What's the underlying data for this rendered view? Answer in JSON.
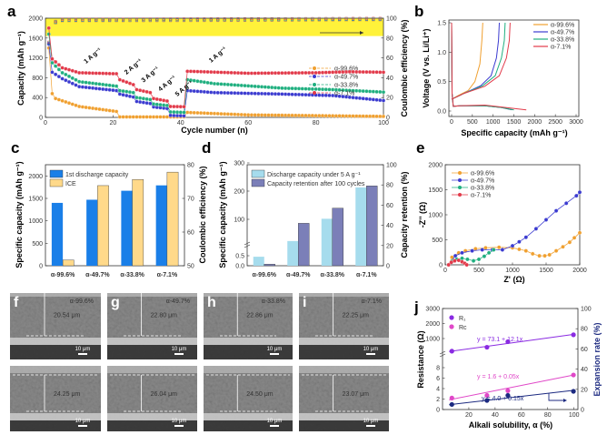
{
  "panel_labels": [
    "a",
    "b",
    "c",
    "d",
    "e",
    "f",
    "g",
    "h",
    "i",
    "j"
  ],
  "colors": {
    "a99": "#f0a030",
    "a49": "#3b3bd0",
    "a33": "#1faf7f",
    "a7": "#e23a4a",
    "yellow_band": "#fff23a",
    "c_capacity": "#1a7fe8",
    "c_ice": "#ffd98a",
    "d_capacity": "#a6dced",
    "d_retention": "#7b7fb8",
    "j_r1": "#8a2be2",
    "j_rc": "#e048c8",
    "j_exp": "#1c2a80"
  },
  "chart_data": [
    {
      "id": "a",
      "type": "line",
      "xlabel": "Cycle number (n)",
      "ylabel": "Capacity (mAh g⁻¹)",
      "y2label": "Coulombic efficiency (%)",
      "xlim": [
        0,
        100
      ],
      "ylim": [
        0,
        2000
      ],
      "y2lim": [
        0,
        100
      ],
      "xticks": [
        0,
        20,
        40,
        60,
        80,
        100
      ],
      "yticks": [
        0,
        400,
        800,
        1200,
        1600,
        2000
      ],
      "y2ticks": [
        0,
        20,
        40,
        60,
        80,
        100
      ],
      "rate_labels": [
        {
          "text": "1 A g⁻¹",
          "cycle": 12,
          "capacity": 1080
        },
        {
          "text": "2 A g⁻¹",
          "cycle": 24,
          "capacity": 860
        },
        {
          "text": "3 A g⁻¹",
          "cycle": 29,
          "capacity": 700
        },
        {
          "text": "4 A g⁻¹",
          "cycle": 34,
          "capacity": 520
        },
        {
          "text": "5 A g⁻¹",
          "cycle": 39,
          "capacity": 420
        },
        {
          "text": "1 A g⁻¹",
          "cycle": 49,
          "capacity": 1100
        }
      ],
      "series": [
        {
          "name": "α-99.6%",
          "color_key": "a99",
          "points": [
            [
              1,
              1400
            ],
            [
              2,
              480
            ],
            [
              3,
              380
            ],
            [
              10,
              220
            ],
            [
              21,
              120
            ],
            [
              22,
              10
            ],
            [
              41,
              10
            ],
            [
              42,
              100
            ],
            [
              60,
              50
            ],
            [
              100,
              20
            ]
          ]
        },
        {
          "name": "α-49.7%",
          "color_key": "a49",
          "points": [
            [
              1,
              1480
            ],
            [
              2,
              910
            ],
            [
              5,
              780
            ],
            [
              10,
              620
            ],
            [
              21,
              540
            ],
            [
              22,
              470
            ],
            [
              26,
              410
            ],
            [
              27,
              320
            ],
            [
              31,
              280
            ],
            [
              32,
              210
            ],
            [
              36,
              180
            ],
            [
              37,
              40
            ],
            [
              41,
              30
            ],
            [
              42,
              540
            ],
            [
              50,
              500
            ],
            [
              70,
              470
            ],
            [
              85,
              440
            ],
            [
              100,
              340
            ]
          ]
        },
        {
          "name": "α-33.8%",
          "color_key": "a33",
          "points": [
            [
              1,
              1680
            ],
            [
              2,
              1100
            ],
            [
              5,
              900
            ],
            [
              10,
              720
            ],
            [
              21,
              630
            ],
            [
              22,
              540
            ],
            [
              26,
              500
            ],
            [
              27,
              400
            ],
            [
              31,
              360
            ],
            [
              32,
              270
            ],
            [
              36,
              240
            ],
            [
              37,
              110
            ],
            [
              41,
              100
            ],
            [
              42,
              760
            ],
            [
              50,
              680
            ],
            [
              70,
              590
            ],
            [
              85,
              560
            ],
            [
              100,
              510
            ]
          ]
        },
        {
          "name": "α-7.1%",
          "color_key": "a7",
          "points": [
            [
              1,
              1800
            ],
            [
              2,
              1180
            ],
            [
              5,
              1000
            ],
            [
              10,
              900
            ],
            [
              21,
              880
            ],
            [
              22,
              760
            ],
            [
              26,
              660
            ],
            [
              27,
              560
            ],
            [
              31,
              500
            ],
            [
              32,
              380
            ],
            [
              36,
              330
            ],
            [
              37,
              220
            ],
            [
              41,
              215
            ],
            [
              42,
              930
            ],
            [
              60,
              890
            ],
            [
              80,
              900
            ],
            [
              90,
              920
            ],
            [
              100,
              910
            ]
          ]
        }
      ],
      "coulombic_efficiency": [
        [
          1,
          75
        ],
        [
          2,
          92
        ],
        [
          3,
          96
        ],
        [
          5,
          98
        ],
        [
          100,
          99
        ]
      ],
      "legend": "right"
    },
    {
      "id": "b",
      "type": "line",
      "xlabel": "Specific capacity (mAh g⁻¹)",
      "ylabel": "Voltage (V vs. Li/Li⁺)",
      "xlim": [
        0,
        3000
      ],
      "ylim": [
        0,
        1.5
      ],
      "xticks": [
        0,
        500,
        1000,
        1500,
        2000,
        2500,
        3000
      ],
      "yticks": [
        0.0,
        0.5,
        1.0,
        1.5
      ],
      "series": [
        {
          "name": "α-99.6%",
          "color_key": "a99",
          "discharge": [
            [
              0,
              1.5
            ],
            [
              10,
              0.3
            ],
            [
              40,
              0.08
            ],
            [
              200,
              0.09
            ],
            [
              800,
              0.09
            ],
            [
              1200,
              0.06
            ],
            [
              1450,
              0.02
            ]
          ],
          "charge": [
            [
              0,
              0.2
            ],
            [
              150,
              0.26
            ],
            [
              400,
              0.35
            ],
            [
              560,
              0.5
            ],
            [
              680,
              0.8
            ],
            [
              730,
              1.2
            ],
            [
              750,
              1.5
            ]
          ]
        },
        {
          "name": "α-49.7%",
          "color_key": "a49",
          "discharge": [
            [
              0,
              1.5
            ],
            [
              10,
              0.3
            ],
            [
              40,
              0.08
            ],
            [
              200,
              0.09
            ],
            [
              800,
              0.09
            ],
            [
              1200,
              0.06
            ],
            [
              1450,
              0.02
            ]
          ],
          "charge": [
            [
              0,
              0.2
            ],
            [
              300,
              0.3
            ],
            [
              700,
              0.43
            ],
            [
              950,
              0.6
            ],
            [
              1080,
              0.9
            ],
            [
              1130,
              1.2
            ],
            [
              1150,
              1.5
            ]
          ]
        },
        {
          "name": "α-33.8%",
          "color_key": "a33",
          "discharge": [
            [
              0,
              1.5
            ],
            [
              10,
              0.3
            ],
            [
              40,
              0.08
            ],
            [
              200,
              0.09
            ],
            [
              800,
              0.09
            ],
            [
              1200,
              0.06
            ],
            [
              1500,
              0.02
            ]
          ],
          "charge": [
            [
              0,
              0.2
            ],
            [
              300,
              0.3
            ],
            [
              750,
              0.43
            ],
            [
              1050,
              0.6
            ],
            [
              1200,
              0.9
            ],
            [
              1270,
              1.2
            ],
            [
              1290,
              1.5
            ]
          ]
        },
        {
          "name": "α-7.1%",
          "color_key": "a7",
          "discharge": [
            [
              0,
              1.5
            ],
            [
              10,
              0.3
            ],
            [
              40,
              0.08
            ],
            [
              200,
              0.09
            ],
            [
              800,
              0.1
            ],
            [
              1300,
              0.06
            ],
            [
              1800,
              0.02
            ]
          ],
          "charge": [
            [
              0,
              0.2
            ],
            [
              300,
              0.3
            ],
            [
              800,
              0.42
            ],
            [
              1150,
              0.6
            ],
            [
              1320,
              0.9
            ],
            [
              1390,
              1.2
            ],
            [
              1410,
              1.5
            ]
          ]
        }
      ],
      "legend": "top-right"
    },
    {
      "id": "c",
      "type": "bar",
      "ylabel": "Specific capacity (mAh g⁻¹)",
      "y2label": "Coulombic efficiency (%)",
      "categories": [
        "α-99.6%",
        "α-49.7%",
        "α-33.8%",
        "α-7.1%"
      ],
      "ylim": [
        0,
        2250
      ],
      "y2lim": [
        50,
        80
      ],
      "yticks": [
        0,
        500,
        1000,
        1500,
        2000
      ],
      "y2ticks": [
        50,
        60,
        70,
        80
      ],
      "series": [
        {
          "name": "1st discharge capacity",
          "color_key": "c_capacity",
          "axis": "left",
          "values": [
            1400,
            1470,
            1670,
            1790
          ]
        },
        {
          "name": "ICE",
          "color_key": "c_ice",
          "axis": "right",
          "values": [
            51.7,
            73.8,
            75.6,
            77.8
          ]
        }
      ],
      "legend": "top-left"
    },
    {
      "id": "d",
      "type": "bar",
      "ylabel": "Specific capacity (mAh g⁻¹)",
      "y2label": "Capacity retention (%)",
      "categories": [
        "α-99.6%",
        "α-49.7%",
        "α-33.8%",
        "α-7.1%"
      ],
      "y_broken_axis": true,
      "yticks": [
        0.0,
        0.5,
        100,
        200,
        300
      ],
      "y2lim": [
        0,
        100
      ],
      "y2ticks": [
        0,
        20,
        40,
        60,
        80,
        100
      ],
      "series": [
        {
          "name": "Discharge capacity under 5 A g⁻¹",
          "color_key": "d_capacity",
          "axis": "left",
          "values": [
            0.45,
            23,
            102,
            213
          ]
        },
        {
          "name": "Capacity retention after 100 cycles",
          "color_key": "d_retention",
          "axis": "right",
          "values": [
            1.5,
            42,
            57,
            79
          ]
        }
      ],
      "legend": "top-left"
    },
    {
      "id": "e",
      "type": "scatter",
      "xlabel": "Z' (Ω)",
      "ylabel": "-Z'' (Ω)",
      "xlim": [
        0,
        2000
      ],
      "ylim": [
        0,
        2000
      ],
      "xticks": [
        0,
        500,
        1000,
        1500,
        2000
      ],
      "yticks": [
        0,
        500,
        1000,
        1500,
        2000
      ],
      "series": [
        {
          "name": "α-99.6%",
          "color_key": "a99",
          "points": [
            [
              50,
              0
            ],
            [
              100,
              150
            ],
            [
              200,
              240
            ],
            [
              300,
              280
            ],
            [
              450,
              320
            ],
            [
              600,
              340
            ],
            [
              800,
              350
            ],
            [
              1000,
              340
            ],
            [
              1100,
              310
            ],
            [
              1200,
              280
            ],
            [
              1300,
              220
            ],
            [
              1400,
              180
            ],
            [
              1480,
              180
            ],
            [
              1550,
              200
            ],
            [
              1650,
              280
            ],
            [
              1750,
              360
            ],
            [
              1850,
              450
            ],
            [
              1920,
              540
            ],
            [
              2000,
              640
            ]
          ]
        },
        {
          "name": "α-49.7%",
          "color_key": "a49",
          "points": [
            [
              50,
              0
            ],
            [
              150,
              180
            ],
            [
              250,
              240
            ],
            [
              400,
              280
            ],
            [
              550,
              300
            ],
            [
              700,
              300
            ],
            [
              850,
              300
            ],
            [
              1000,
              380
            ],
            [
              1100,
              460
            ],
            [
              1200,
              550
            ],
            [
              1350,
              720
            ],
            [
              1500,
              900
            ],
            [
              1650,
              1080
            ],
            [
              1800,
              1230
            ],
            [
              1950,
              1380
            ],
            [
              2000,
              1450
            ]
          ]
        },
        {
          "name": "α-33.8%",
          "color_key": "a33",
          "points": [
            [
              50,
              0
            ],
            [
              100,
              70
            ],
            [
              170,
              110
            ],
            [
              250,
              130
            ],
            [
              330,
              110
            ],
            [
              420,
              80
            ],
            [
              500,
              110
            ],
            [
              580,
              170
            ],
            [
              650,
              240
            ],
            [
              720,
              300
            ]
          ]
        },
        {
          "name": "α-7.1%",
          "color_key": "a7",
          "points": [
            [
              50,
              0
            ],
            [
              90,
              50
            ],
            [
              140,
              80
            ],
            [
              200,
              90
            ],
            [
              250,
              60
            ],
            [
              290,
              30
            ],
            [
              320,
              0
            ]
          ]
        }
      ],
      "legend": "top-left"
    },
    {
      "id": "j",
      "type": "scatter",
      "xlabel": "Alkali solubility, α (%)",
      "ylabel": "Resistance (Ω)",
      "y2label": "Expansion rate (%)",
      "xlim": [
        0,
        103
      ],
      "xticks": [
        20,
        40,
        60,
        80,
        100
      ],
      "y_broken_axis": true,
      "yticks_lower": [
        0,
        2,
        4,
        6,
        8
      ],
      "yticks_upper": [
        1000,
        2000,
        3000
      ],
      "y2lim": [
        0,
        100
      ],
      "y2ticks": [
        0,
        20,
        40,
        60,
        80,
        100
      ],
      "x": [
        7.1,
        33.8,
        49.7,
        99.6
      ],
      "series": [
        {
          "name": "R₁",
          "color_key": "j_r1",
          "axis": "left-upper",
          "values": [
            160,
            420,
            790,
            1250
          ],
          "fit": {
            "label": "y = 73.1 + 12.1x",
            "intercept": 73.1,
            "slope": 12.1
          }
        },
        {
          "name": "Rᴄ",
          "color_key": "j_rc",
          "axis": "left-lower",
          "values": [
            2.2,
            2.7,
            3.6,
            6.6
          ],
          "fit": {
            "label": "y = 1.6 + 0.05x",
            "intercept": 1.6,
            "slope": 0.05
          }
        },
        {
          "name": "",
          "color_key": "j_exp",
          "axis": "right",
          "values": [
            5,
            9,
            14,
            18
          ],
          "fit": {
            "label": "y = 4.0 + 0.15x",
            "intercept": 4.0,
            "slope": 0.15
          }
        }
      ],
      "legend": "top-left"
    }
  ],
  "sem": {
    "samples": [
      "α-99.6%",
      "α-49.7%",
      "α-33.8%",
      "α-7.1%"
    ],
    "thickness_top": [
      "20.54 μm",
      "22.80 μm",
      "22.86 μm",
      "22.25 μm"
    ],
    "thickness_bottom": [
      "24.25 μm",
      "26.04 μm",
      "24.50 μm",
      "23.07 μm"
    ],
    "scale_bar": "10 μm"
  }
}
